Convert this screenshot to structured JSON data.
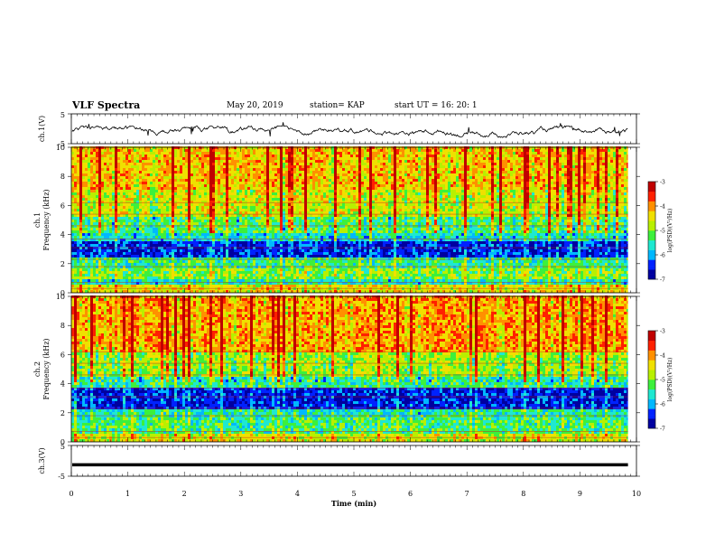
{
  "header": {
    "title": "VLF Spectra",
    "date": "May 20, 2019",
    "station": "station= KAP",
    "start_ut": "start  UT =   16: 20: 1"
  },
  "colors": {
    "palette": [
      "#0000a0",
      "#0022ff",
      "#00b8ff",
      "#1fe8d0",
      "#3cf03c",
      "#b8f000",
      "#f0e000",
      "#ff9000",
      "#ff2000",
      "#c00000"
    ],
    "trace": "#000000"
  },
  "chart_data": [
    {
      "type": "line",
      "panel": "waveform",
      "ylabel": "ch.1(V)",
      "ylim": [
        -5,
        5
      ],
      "yticks": [
        "5",
        "-5"
      ],
      "xlim": [
        0,
        10
      ],
      "description_values": {
        "mean": 0,
        "amplitude_range": [
          -3,
          1
        ]
      }
    },
    {
      "type": "heatmap",
      "panel": "spectrogram",
      "ylabel": "ch.1\nFrequency (kHz)",
      "ylim": [
        0,
        10
      ],
      "yticks": [
        "0",
        "2",
        "4",
        "6",
        "8",
        "10"
      ],
      "xlim": [
        0,
        9.85
      ],
      "colorbar": {
        "label": "log(PSD)(V²/Hz)",
        "range": [
          -7,
          -3
        ],
        "ticks": [
          "-3",
          "-4",
          "-5",
          "-6",
          "-7"
        ]
      },
      "bands_khz": [
        {
          "range": [
            0,
            0.4
          ],
          "level": -4.5
        },
        {
          "range": [
            0.4,
            0.8
          ],
          "level": -5.6
        },
        {
          "range": [
            0.8,
            1.6
          ],
          "level": -5.0
        },
        {
          "range": [
            1.6,
            2.4
          ],
          "level": -5.4
        },
        {
          "range": [
            2.4,
            3.4
          ],
          "level": -6.5
        },
        {
          "range": [
            3.4,
            4.0
          ],
          "level": -5.7
        },
        {
          "range": [
            4.0,
            5.2
          ],
          "level": -5.2
        },
        {
          "range": [
            5.2,
            7.0
          ],
          "level": -4.6
        },
        {
          "range": [
            7.0,
            10.0
          ],
          "level": -4.2
        }
      ]
    },
    {
      "type": "heatmap",
      "panel": "spectrogram",
      "ylabel": "ch.2\nFrequency (kHz)",
      "ylim": [
        0,
        10
      ],
      "yticks": [
        "0",
        "2",
        "4",
        "6",
        "8",
        "10"
      ],
      "xlim": [
        0,
        9.85
      ],
      "colorbar": {
        "label": "log(PSD)(V²/Hz)",
        "range": [
          -7,
          -3
        ],
        "ticks": [
          "-3",
          "-4",
          "-5",
          "-6",
          "-7"
        ]
      },
      "bands_khz": [
        {
          "range": [
            0,
            0.4
          ],
          "level": -4.6
        },
        {
          "range": [
            0.4,
            1.6
          ],
          "level": -5.3
        },
        {
          "range": [
            1.6,
            2.2
          ],
          "level": -5.5
        },
        {
          "range": [
            2.2,
            3.6
          ],
          "level": -6.5
        },
        {
          "range": [
            3.6,
            4.4
          ],
          "level": -5.4
        },
        {
          "range": [
            4.4,
            6.0
          ],
          "level": -4.8
        },
        {
          "range": [
            6.0,
            10.0
          ],
          "level": -4.0
        }
      ]
    },
    {
      "type": "line",
      "panel": "waveform",
      "ylabel": "ch.3(V)",
      "ylim": [
        -5,
        5
      ],
      "yticks": [
        "5",
        "-5"
      ],
      "xlim": [
        0,
        10
      ],
      "constant_value": -1.3
    }
  ],
  "xaxis": {
    "label": "Time (min)",
    "ticks": [
      "0",
      "1",
      "2",
      "3",
      "4",
      "5",
      "6",
      "7",
      "8",
      "9",
      "10"
    ],
    "range": [
      0,
      10
    ]
  }
}
